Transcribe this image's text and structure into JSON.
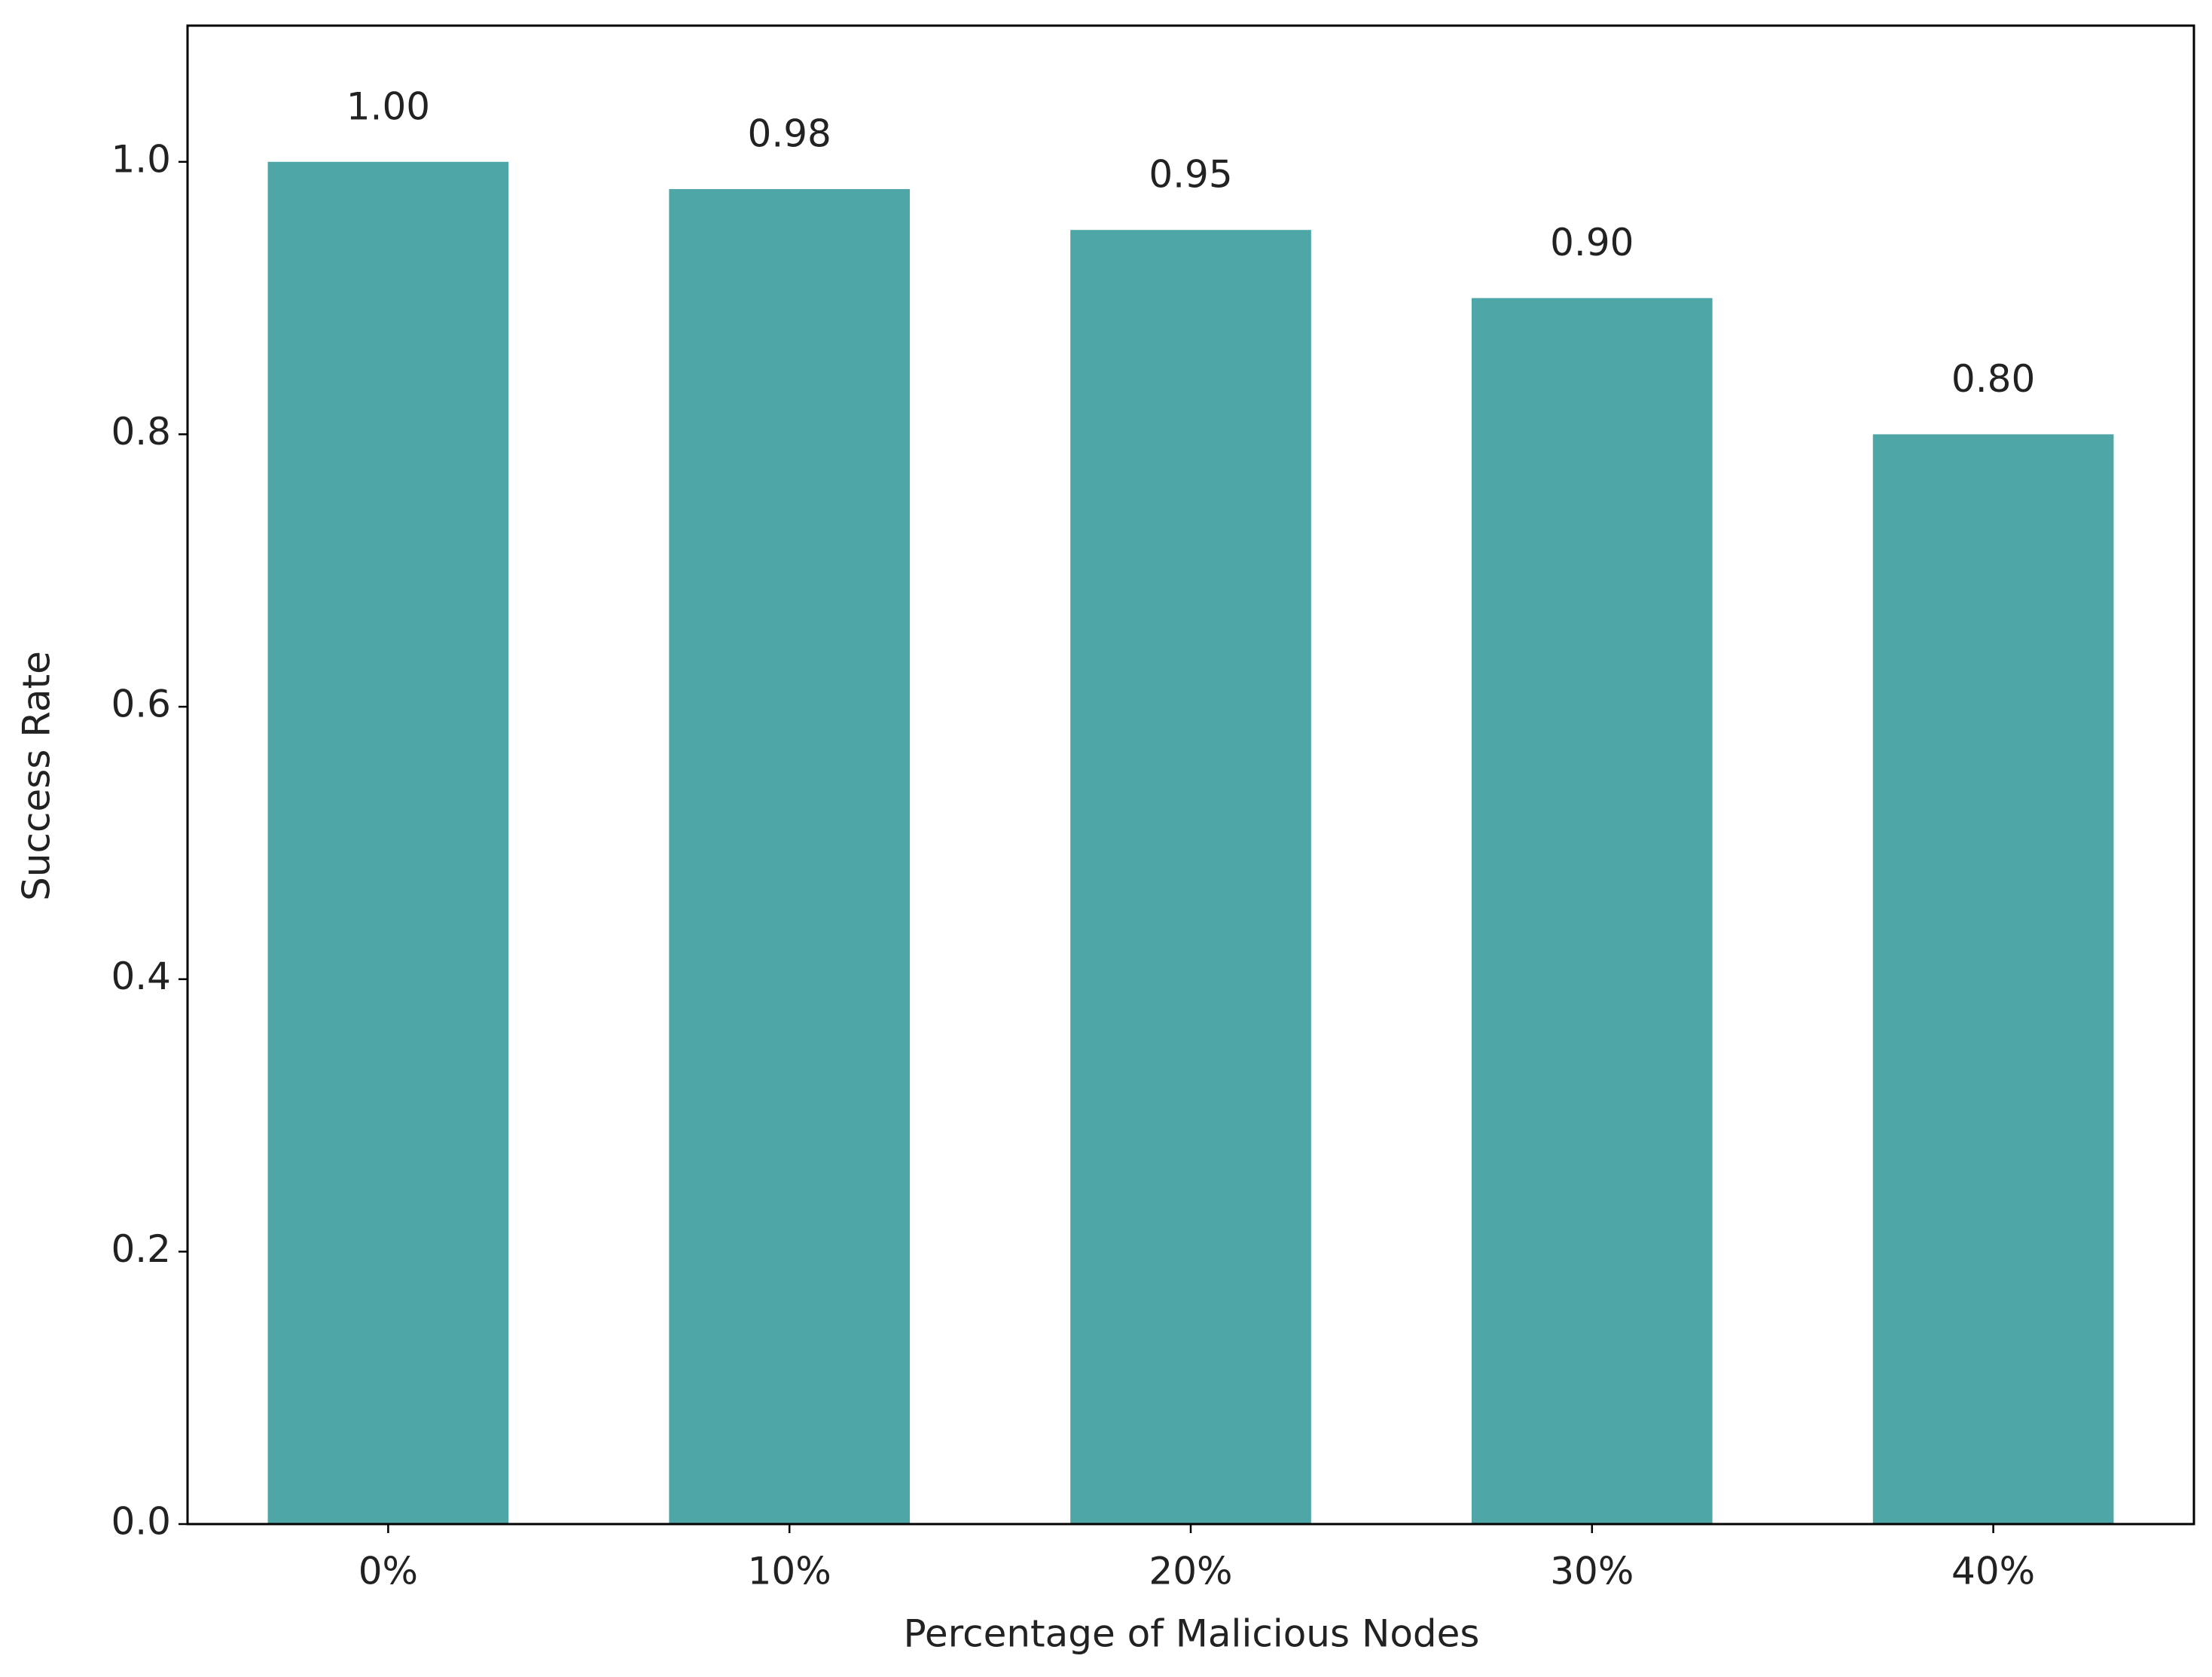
{
  "chart_data": {
    "type": "bar",
    "categories": [
      "0%",
      "10%",
      "20%",
      "30%",
      "40%"
    ],
    "values": [
      1.0,
      0.98,
      0.95,
      0.9,
      0.8
    ],
    "value_labels": [
      "1.00",
      "0.98",
      "0.95",
      "0.90",
      "0.80"
    ],
    "color": "#4ea6a6",
    "x_label": "Percentage of Malicious Nodes",
    "y_label": "Success Rate",
    "ylim": [
      0,
      1.1
    ],
    "yticks": [
      {
        "value": 0,
        "label": "0.0"
      },
      {
        "value": 0.2,
        "label": "0.2"
      },
      {
        "value": 0.4,
        "label": "0.4"
      },
      {
        "value": 0.6,
        "label": "0.6"
      },
      {
        "value": 0.8,
        "label": "0.8"
      },
      {
        "value": 1.0,
        "label": "1.0"
      }
    ],
    "grid": false
  }
}
